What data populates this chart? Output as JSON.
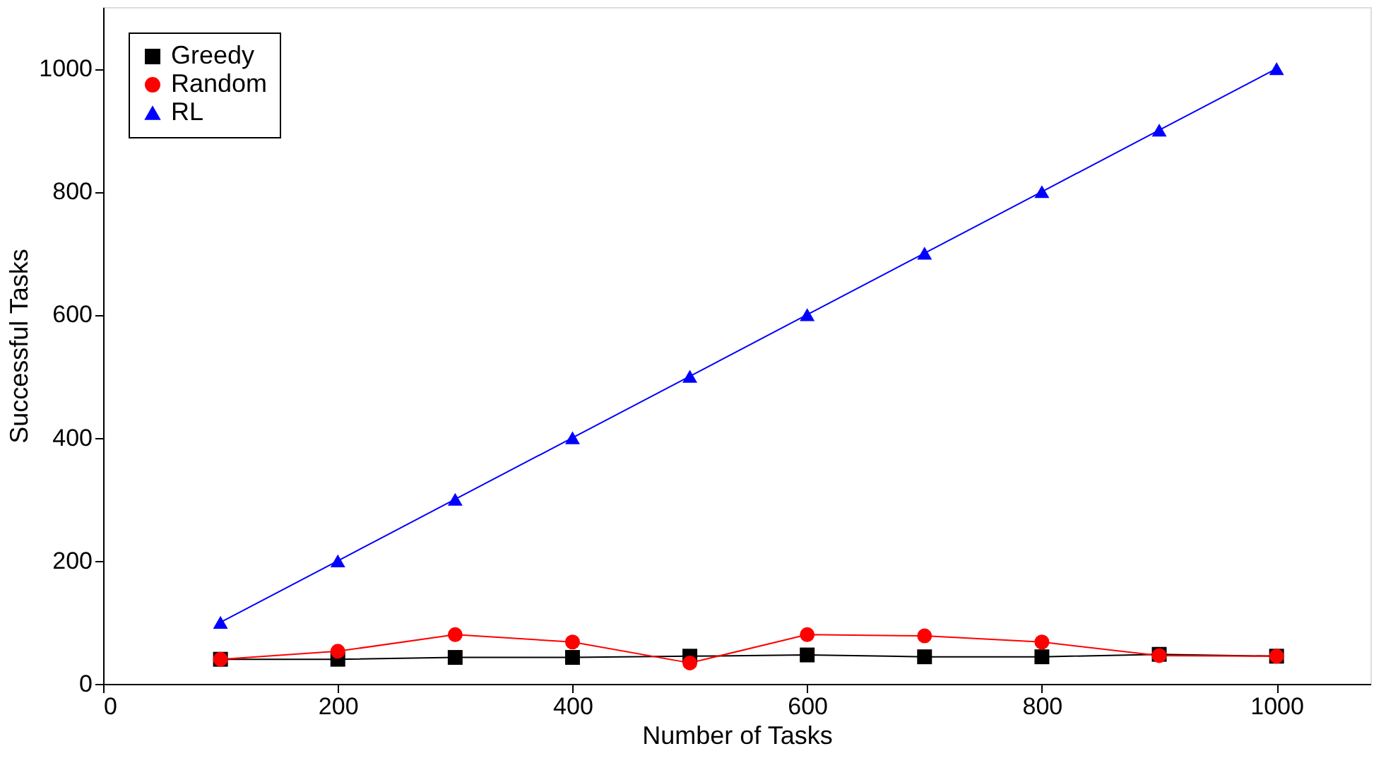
{
  "chart_data": {
    "type": "line",
    "xlabel": "Number of Tasks",
    "ylabel": "Successful Tasks",
    "x": [
      100,
      200,
      300,
      400,
      500,
      600,
      700,
      800,
      900,
      1000
    ],
    "series": [
      {
        "name": "Greedy",
        "color": "#000000",
        "marker": "square",
        "values": [
          40,
          40,
          43,
          43,
          45,
          47,
          44,
          44,
          48,
          45
        ]
      },
      {
        "name": "Random",
        "color": "#ff0000",
        "marker": "circle",
        "values": [
          40,
          53,
          80,
          68,
          34,
          80,
          78,
          68,
          46,
          45
        ]
      },
      {
        "name": "RL",
        "color": "#0000ff",
        "marker": "triangle",
        "values": [
          100,
          200,
          300,
          400,
          500,
          600,
          700,
          800,
          900,
          1000
        ]
      }
    ],
    "xlim": [
      0,
      1080
    ],
    "xticks": [
      0,
      200,
      400,
      600,
      800,
      1000
    ],
    "ylim": [
      0,
      1100
    ],
    "yticks": [
      0,
      200,
      400,
      600,
      800,
      1000
    ],
    "grid": false,
    "legend": "top left",
    "line_style": "solid"
  }
}
